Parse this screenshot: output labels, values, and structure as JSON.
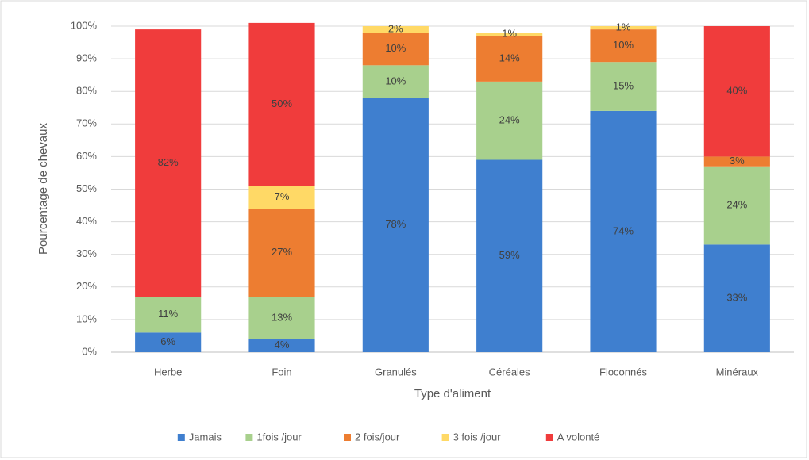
{
  "chart_data": {
    "type": "stacked_bar",
    "x_label": "Type d'aliment",
    "y_label": "Pourcentage de chevaux",
    "categories": [
      "Herbe",
      "Foin",
      "Granulés",
      "Céréales",
      "Floconnés",
      "Minéraux"
    ],
    "series": [
      {
        "name": "Jamais",
        "color": "#3f7fcf",
        "values": [
          6,
          4,
          78,
          59,
          74,
          33
        ],
        "value_labels": [
          "6%",
          "4%",
          "78%",
          "59%",
          "74%",
          "33%"
        ]
      },
      {
        "name": "1fois /jour",
        "color": "#a8d08d",
        "values": [
          11,
          13,
          10,
          24,
          15,
          24
        ],
        "value_labels": [
          "11%",
          "13%",
          "10%",
          "24%",
          "15%",
          "24%"
        ]
      },
      {
        "name": "2 fois/jour",
        "color": "#ed7d31",
        "values": [
          null,
          27,
          10,
          14,
          10,
          3
        ],
        "value_labels": [
          null,
          "27%",
          "10%",
          "14%",
          "10%",
          "3%"
        ]
      },
      {
        "name": "3 fois /jour",
        "color": "#ffd966",
        "values": [
          null,
          7,
          2,
          1,
          1,
          null
        ],
        "value_labels": [
          null,
          "7%",
          "2%",
          "1%",
          "1%",
          null
        ]
      },
      {
        "name": "A volonté",
        "color": "#f03c3c",
        "values": [
          82,
          50,
          null,
          null,
          null,
          40
        ],
        "value_labels": [
          "82%",
          "50%",
          null,
          null,
          null,
          "40%"
        ]
      }
    ],
    "ylim": [
      0,
      100
    ],
    "yticks": [
      {
        "value": 0,
        "label": "0%"
      },
      {
        "value": 10,
        "label": "10%"
      },
      {
        "value": 20,
        "label": "20%"
      },
      {
        "value": 30,
        "label": "30%"
      },
      {
        "value": 40,
        "label": "40%"
      },
      {
        "value": 50,
        "label": "50%"
      },
      {
        "value": 60,
        "label": "60%"
      },
      {
        "value": 70,
        "label": "70%"
      },
      {
        "value": 80,
        "label": "80%"
      },
      {
        "value": 90,
        "label": "90%"
      },
      {
        "value": 100,
        "label": "100%"
      }
    ],
    "grid": true,
    "legend": "bottom"
  }
}
